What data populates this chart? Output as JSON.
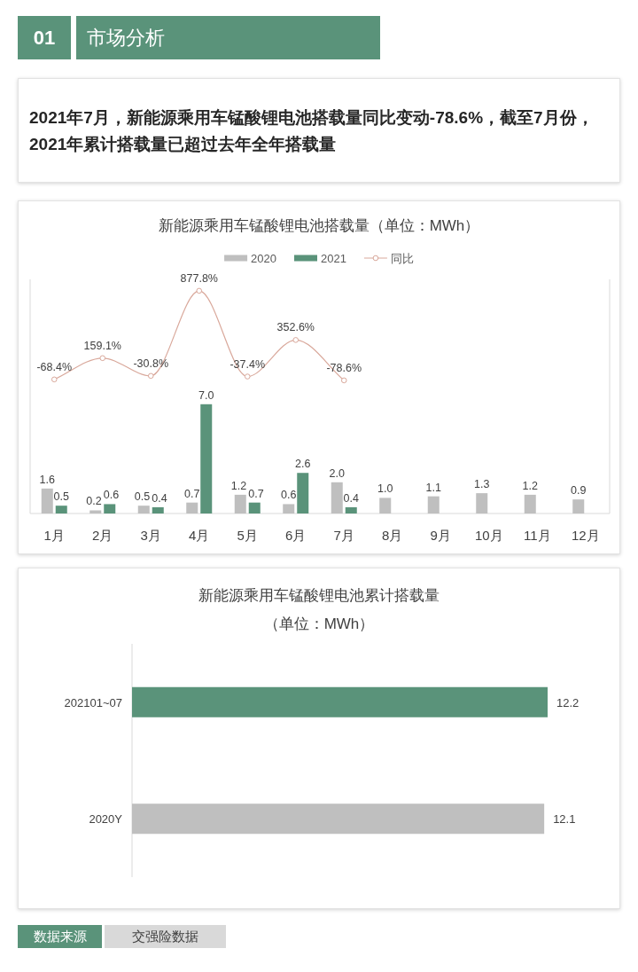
{
  "chart_data": [
    {
      "type": "other",
      "title": "市场分析",
      "annotations": [
        "01",
        "2021年7月，新能源乘用车锰酸锂电池搭载量同比变动-78.6%，截至7月份，2021年累计搭载量已超过去年全年搭载量"
      ]
    },
    {
      "type": "bar",
      "title": "新能源乘用车锰酸锂电池搭载量（单位：MWh）",
      "categories": [
        "1月",
        "2月",
        "3月",
        "4月",
        "5月",
        "6月",
        "7月",
        "8月",
        "9月",
        "10月",
        "11月",
        "12月"
      ],
      "series": [
        {
          "name": "2020",
          "color": "#bfbfbf",
          "values": [
            1.6,
            0.2,
            0.5,
            0.7,
            1.2,
            0.6,
            2.0,
            1.0,
            1.1,
            1.3,
            1.2,
            0.9
          ],
          "value_labels": [
            "1.6",
            "0.2",
            "0.5",
            "0.7",
            "1.2",
            "0.6",
            "2.0",
            "1.0",
            "1.1",
            "1.3",
            "1.2",
            "0.9"
          ]
        },
        {
          "name": "2021",
          "color": "#5a937a",
          "values": [
            0.5,
            0.6,
            0.4,
            7.0,
            0.7,
            2.6,
            0.4,
            null,
            null,
            null,
            null,
            null
          ],
          "value_labels": [
            "0.5",
            "0.6",
            "0.4",
            "7.0",
            "0.7",
            "2.6",
            "0.4",
            null,
            null,
            null,
            null,
            null
          ]
        },
        {
          "name": "同比",
          "type": "line",
          "axis": "y2",
          "color": "#d9a89b",
          "marker": "circle",
          "values": [
            -68.4,
            159.1,
            -30.8,
            877.8,
            -37.4,
            352.6,
            -78.6,
            null,
            null,
            null,
            null,
            null
          ],
          "value_labels": [
            "-68.4%",
            "159.1%",
            "-30.8%",
            "877.8%",
            "-37.4%",
            "352.6%",
            "-78.6%",
            null,
            null,
            null,
            null,
            null
          ]
        }
      ],
      "ylim": [
        0,
        15
      ],
      "y2lim": [
        -1500,
        1000
      ],
      "legend": "top",
      "tick_labels": "x"
    },
    {
      "type": "bar",
      "orientation": "horizontal",
      "title": "新能源乘用车锰酸锂电池累计搭载量",
      "subtitle": "（单位：MWh）",
      "categories": [
        "202101~07",
        "2020Y"
      ],
      "values": [
        12.2,
        12.1
      ],
      "colors": [
        "#5a937a",
        "#bfbfbf"
      ],
      "value_labels": [
        "12.2",
        "12.1"
      ],
      "tick_labels": "y"
    },
    {
      "type": "other",
      "annotations": [
        "数据来源",
        "交强险数据"
      ]
    }
  ]
}
